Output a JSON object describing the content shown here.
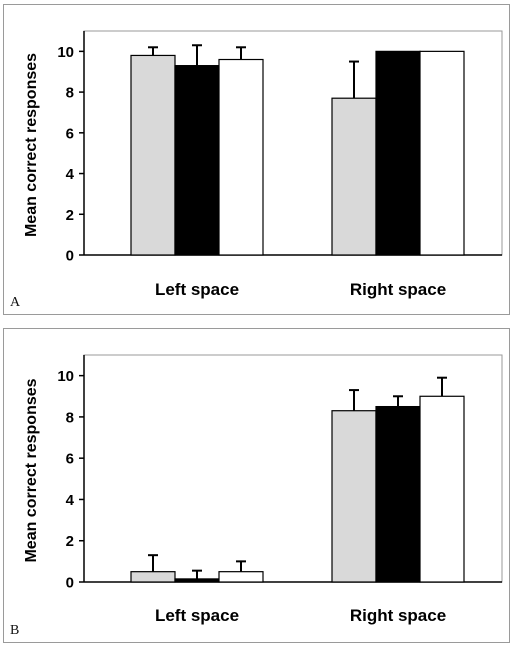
{
  "chart_data": [
    {
      "panel": "A",
      "type": "bar",
      "categories": [
        "Left space",
        "Right space"
      ],
      "ylabel": "Mean correct responses",
      "ylim": [
        0,
        11
      ],
      "yticks": [
        "0",
        "2",
        "4",
        "6",
        "8",
        "10"
      ],
      "series": [
        {
          "values": [
            9.8,
            7.7
          ],
          "errors": [
            0.4,
            1.8
          ],
          "color": "#d9d9d9"
        },
        {
          "values": [
            9.3,
            10.0
          ],
          "errors": [
            1.0,
            0.0
          ],
          "color": "#000000"
        },
        {
          "values": [
            9.6,
            10.0
          ],
          "errors": [
            0.6,
            0.0
          ],
          "color": "#ffffff"
        }
      ]
    },
    {
      "panel": "B",
      "type": "bar",
      "categories": [
        "Left space",
        "Right space"
      ],
      "ylabel": "Mean correct responses",
      "ylim": [
        0,
        11
      ],
      "yticks": [
        "0",
        "2",
        "4",
        "6",
        "8",
        "10"
      ],
      "series": [
        {
          "values": [
            0.5,
            8.3
          ],
          "errors": [
            0.8,
            1.0
          ],
          "color": "#d9d9d9"
        },
        {
          "values": [
            0.15,
            8.5
          ],
          "errors": [
            0.4,
            0.5
          ],
          "color": "#000000"
        },
        {
          "values": [
            0.5,
            9.0
          ],
          "errors": [
            0.5,
            0.9
          ],
          "color": "#ffffff"
        }
      ]
    }
  ]
}
